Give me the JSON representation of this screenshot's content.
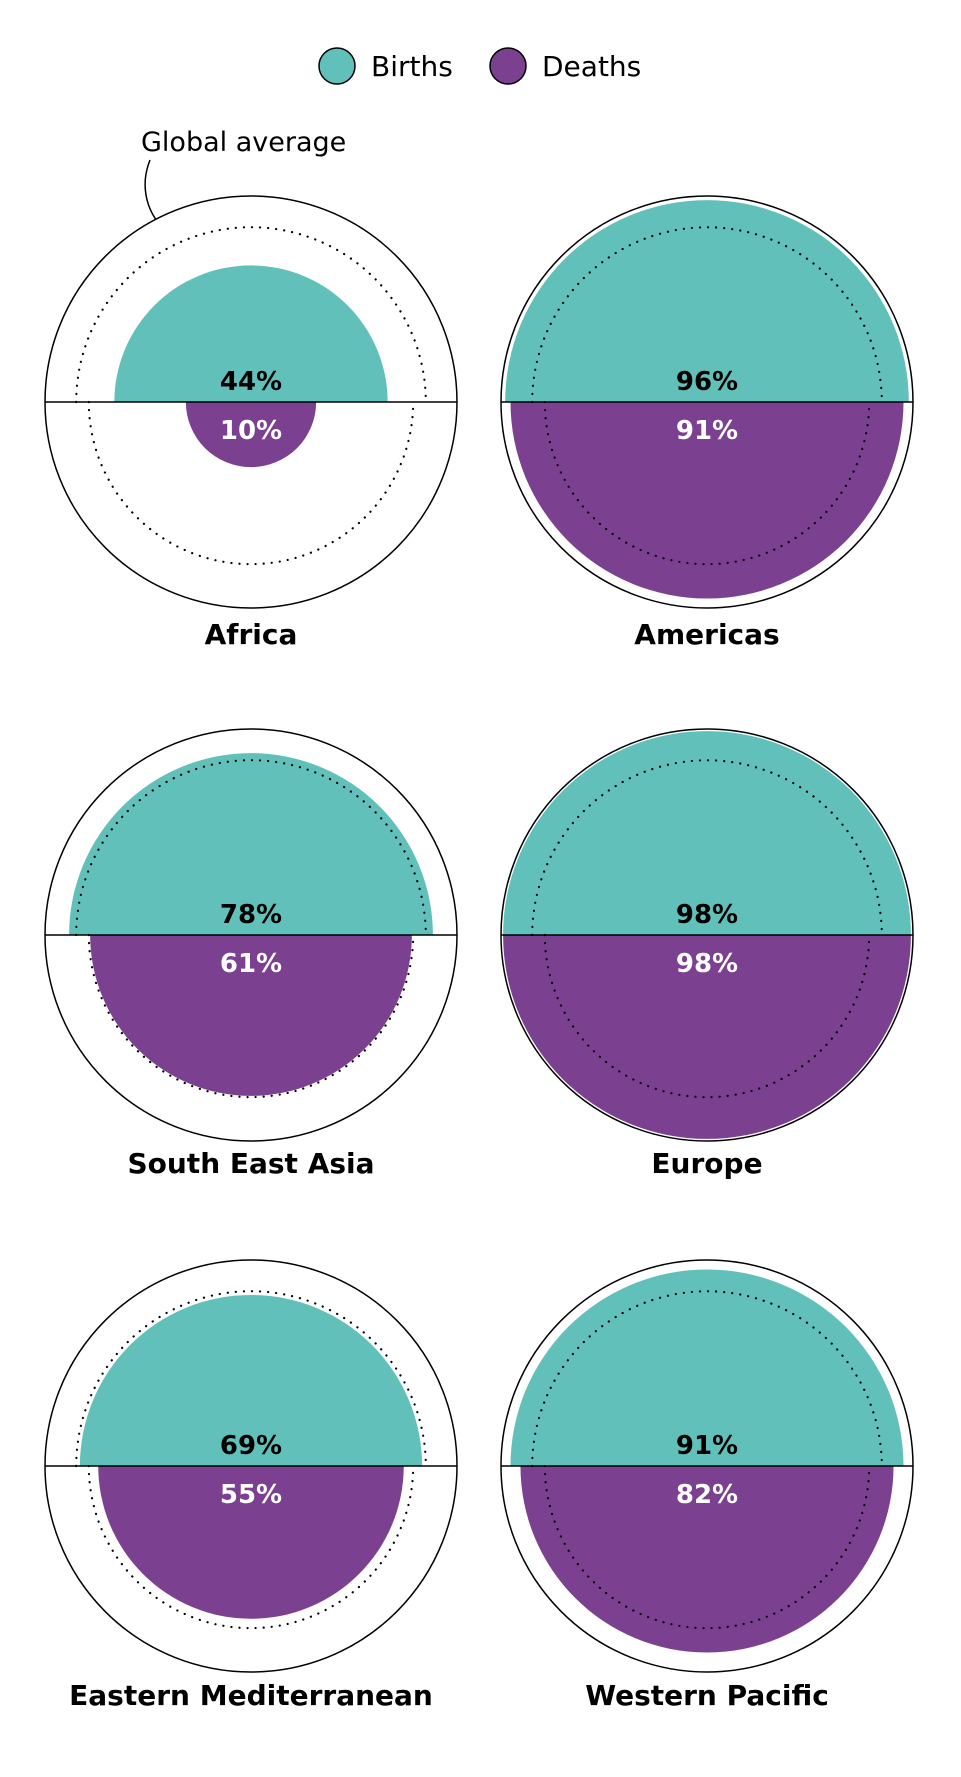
{
  "chart_data": {
    "type": "polar-semicircle",
    "legend": {
      "placement": "top-center",
      "items": [
        {
          "name": "Births",
          "color": "#62C0BB"
        },
        {
          "name": "Deaths",
          "color": "#7B4190"
        }
      ]
    },
    "annotation": "Global average",
    "global_average": {
      "births": 72,
      "deaths": 62
    },
    "regions": [
      {
        "name": "Africa",
        "births": 44,
        "deaths": 10
      },
      {
        "name": "Americas",
        "births": 96,
        "deaths": 91
      },
      {
        "name": "South East Asia",
        "births": 78,
        "deaths": 61
      },
      {
        "name": "Europe",
        "births": 98,
        "deaths": 98
      },
      {
        "name": "Eastern Mediterranean",
        "births": 69,
        "deaths": 55
      },
      {
        "name": "Western Pacific",
        "births": 91,
        "deaths": 82
      }
    ],
    "value_suffix": "%",
    "scale": "area proportional (radius = sqrt of share)",
    "range": [
      0,
      100
    ]
  }
}
